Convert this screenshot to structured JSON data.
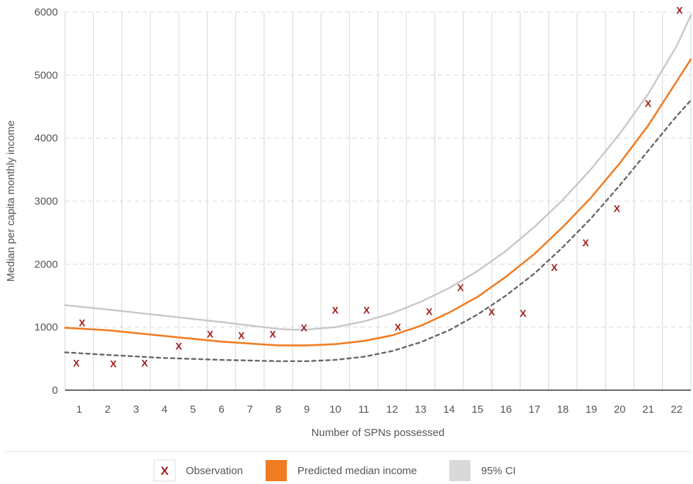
{
  "chart_data": {
    "type": "scatter",
    "xlabel": "Number of SPNs possessed",
    "ylabel": "Median per capita monthly income",
    "xlim": [
      0.5,
      22.5
    ],
    "ylim": [
      0,
      6000
    ],
    "x_ticks": [
      "1",
      "2",
      "3",
      "4",
      "5",
      "6",
      "7",
      "8",
      "9",
      "10",
      "11",
      "12",
      "13",
      "14",
      "15",
      "16",
      "17",
      "18",
      "19",
      "20",
      "21",
      "22"
    ],
    "y_ticks": [
      "0",
      "1000",
      "2000",
      "3000",
      "4000",
      "5000",
      "6000"
    ],
    "grid": "vertical solid, horizontal dashed",
    "series": [
      {
        "name": "Observation",
        "kind": "scatter",
        "marker": "X",
        "color": "#a32020",
        "x": [
          0.9,
          1.1,
          2.2,
          3.3,
          4.5,
          5.6,
          6.7,
          7.8,
          8.9,
          10,
          11.1,
          12.2,
          13.3,
          14.4,
          15.5,
          16.6,
          17.7,
          18.8,
          19.9,
          21,
          22.1
        ],
        "y": [
          430,
          1070,
          420,
          430,
          700,
          890,
          870,
          890,
          990,
          1270,
          1270,
          1000,
          1250,
          1630,
          1240,
          1220,
          1950,
          2340,
          2880,
          4550,
          6030
        ]
      },
      {
        "name": "Predicted median income",
        "kind": "line",
        "color": "#f07c22",
        "x": [
          0.5,
          2,
          4,
          6,
          8,
          9,
          10,
          11,
          12,
          13,
          14,
          15,
          16,
          17,
          18,
          19,
          20,
          21,
          22,
          22.5
        ],
        "y": [
          990,
          950,
          860,
          770,
          710,
          710,
          730,
          780,
          870,
          1020,
          1230,
          1480,
          1800,
          2160,
          2590,
          3060,
          3600,
          4200,
          4900,
          5250
        ]
      },
      {
        "name": "95% CI",
        "kind": "line",
        "color": "#c7c7c7",
        "x": [
          0.5,
          2,
          4,
          6,
          8,
          8.5,
          9,
          10,
          11,
          12,
          13,
          14,
          15,
          16,
          17,
          18,
          19,
          20,
          21,
          22,
          22.5
        ],
        "y": [
          1350,
          1280,
          1180,
          1080,
          970,
          960,
          960,
          1000,
          1090,
          1220,
          1400,
          1620,
          1890,
          2210,
          2590,
          3020,
          3510,
          4070,
          4700,
          5460,
          5950
        ]
      },
      {
        "kind": "line",
        "style": "dashed",
        "color": "#666666",
        "x": [
          0.5,
          2,
          4,
          6,
          8,
          9,
          10,
          11,
          12,
          13,
          14,
          15,
          16,
          17,
          18,
          19,
          20,
          21,
          22,
          22.5
        ],
        "y": [
          600,
          560,
          510,
          480,
          460,
          460,
          480,
          530,
          620,
          760,
          950,
          1200,
          1500,
          1850,
          2270,
          2730,
          3250,
          3800,
          4350,
          4600
        ]
      }
    ],
    "legend": {
      "position": "bottom",
      "items": [
        {
          "label": "Observation",
          "kind": "marker",
          "symbol": "X",
          "color": "#a32020"
        },
        {
          "label": "Predicted median income",
          "kind": "swatch",
          "color": "#f07c22"
        },
        {
          "label": "95% CI",
          "kind": "swatch",
          "color": "#d9d9d9"
        }
      ]
    }
  }
}
